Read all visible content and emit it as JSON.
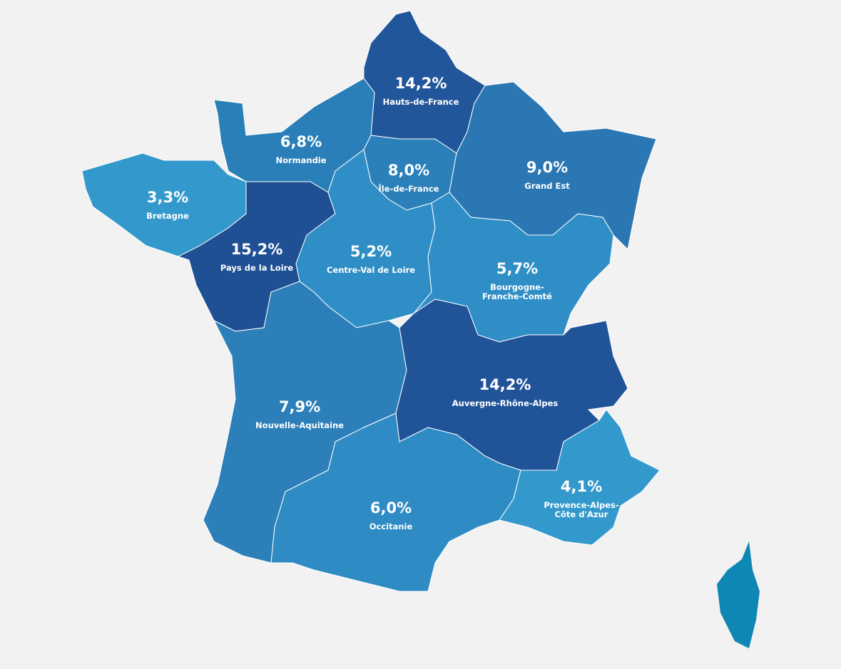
{
  "regions": [
    {
      "name": "Hauts-de-France",
      "value": 14.2,
      "value_label": "14,2%",
      "color": "#22569a"
    },
    {
      "name": "Normandie",
      "value": 6.8,
      "value_label": "6,8%",
      "color": "#2a7fb8"
    },
    {
      "name": "Île-de-France",
      "value": 8.0,
      "value_label": "8,0%",
      "color": "#2b80ba"
    },
    {
      "name": "Grand Est",
      "value": 9.0,
      "value_label": "9,0%",
      "color": "#2b77b3"
    },
    {
      "name": "Bretagne",
      "value": 3.3,
      "value_label": "3,3%",
      "color": "#3399cc"
    },
    {
      "name": "Pays de la Loire",
      "value": 15.2,
      "value_label": "15,2%",
      "color": "#1f5094"
    },
    {
      "name": "Centre-Val de Loire",
      "value": 5.2,
      "value_label": "5,2%",
      "color": "#2f8ec6"
    },
    {
      "name": "Bourgogne-Franche-Comté",
      "value": 5.7,
      "value_label": "5,7%",
      "color": "#2f8ec6"
    },
    {
      "name": "Nouvelle-Aquitaine",
      "value": 7.9,
      "value_label": "7,9%",
      "color": "#2c7fb8"
    },
    {
      "name": "Auvergne-Rhône-Alpes",
      "value": 14.2,
      "value_label": "14,2%",
      "color": "#215399"
    },
    {
      "name": "Occitanie",
      "value": 6.0,
      "value_label": "6,0%",
      "color": "#2f8bc4"
    },
    {
      "name": "Provence-Alpes-Côte d'Azur",
      "value": 4.1,
      "value_label": "4,1%",
      "color": "#3399cc"
    }
  ]
}
